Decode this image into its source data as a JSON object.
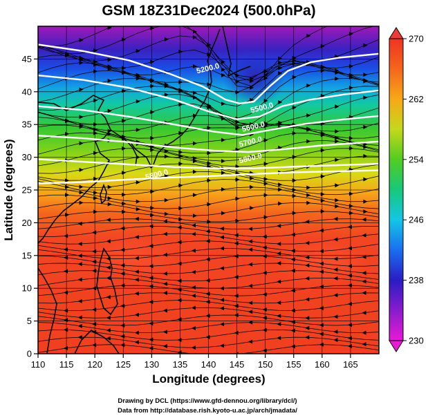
{
  "chart_data": {
    "type": "heatmap",
    "title": "GSM 18Z31Dec2024 (500.0hPa)",
    "xlabel": "Longitude (degrees)",
    "ylabel": "Latitude  (degrees)",
    "xlim": [
      110,
      170
    ],
    "ylim": [
      0,
      50
    ],
    "x_ticks": [
      "110",
      "115",
      "120",
      "125",
      "130",
      "135",
      "140",
      "145",
      "150",
      "155",
      "160",
      "165"
    ],
    "y_ticks": [
      "0",
      "5",
      "10",
      "15",
      "20",
      "25",
      "30",
      "35",
      "40",
      "45"
    ],
    "colorbar": {
      "range": [
        230,
        270
      ],
      "tick_labels": [
        "230",
        "238",
        "246",
        "254",
        "262",
        "270"
      ]
    },
    "contours": [
      {
        "label": "5200.0",
        "points": [
          [
            110,
            47.2
          ],
          [
            118,
            46.2
          ],
          [
            126,
            44.8
          ],
          [
            133,
            42.8
          ],
          [
            139,
            40.8
          ],
          [
            143,
            38.8
          ],
          [
            145.5,
            38.2
          ],
          [
            148,
            38.5
          ],
          [
            151,
            41
          ],
          [
            154,
            43.2
          ],
          [
            158,
            44.5
          ],
          [
            163,
            45.2
          ],
          [
            170,
            45.8
          ]
        ]
      },
      {
        "label": "5500.0",
        "points": [
          [
            110,
            42.5
          ],
          [
            118,
            41.8
          ],
          [
            126,
            40.6
          ],
          [
            134,
            38.8
          ],
          [
            140,
            37
          ],
          [
            145,
            35.8
          ],
          [
            149,
            36.2
          ],
          [
            153,
            37.8
          ],
          [
            158,
            38.8
          ],
          [
            164,
            39.6
          ],
          [
            170,
            40.2
          ]
        ]
      },
      {
        "label": "5600.0",
        "points": [
          [
            110,
            37.8
          ],
          [
            118,
            37.2
          ],
          [
            126,
            36.2
          ],
          [
            134,
            35
          ],
          [
            141,
            33.9
          ],
          [
            146,
            33.4
          ],
          [
            151,
            34.2
          ],
          [
            157,
            35.1
          ],
          [
            164,
            35.8
          ],
          [
            170,
            36.3
          ]
        ]
      },
      {
        "label": "5700.0",
        "points": [
          [
            110,
            33.3
          ],
          [
            118,
            32.9
          ],
          [
            126,
            32.3
          ],
          [
            134,
            31.5
          ],
          [
            141,
            31
          ],
          [
            147,
            30.8
          ],
          [
            153,
            31.2
          ],
          [
            160,
            31.8
          ],
          [
            170,
            32.4
          ]
        ]
      },
      {
        "label": "5800.0",
        "points": [
          [
            110,
            29.7
          ],
          [
            118,
            29.3
          ],
          [
            126,
            28.9
          ],
          [
            134,
            28.5
          ],
          [
            141,
            28.3
          ],
          [
            148,
            28.3
          ],
          [
            156,
            28.6
          ],
          [
            170,
            29
          ]
        ]
      },
      {
        "label": "5800.0",
        "points": [
          [
            110,
            26
          ],
          [
            118,
            26.2
          ],
          [
            126,
            26.6
          ],
          [
            133,
            26.9
          ],
          [
            140,
            27.1
          ],
          [
            147,
            27.4
          ],
          [
            155,
            27.7
          ],
          [
            170,
            28
          ]
        ]
      }
    ],
    "contour_labels": [
      {
        "text": "5200.0",
        "x": 140,
        "y": 43.2
      },
      {
        "text": "5500.0",
        "x": 149.5,
        "y": 37.2
      },
      {
        "text": "5600.0",
        "x": 148,
        "y": 34.3
      },
      {
        "text": "5700.0",
        "x": 147.5,
        "y": 32
      },
      {
        "text": "5800.0",
        "x": 147.5,
        "y": 29.5
      },
      {
        "text": "5800.0",
        "x": 131,
        "y": 27
      }
    ]
  },
  "credits": {
    "line1": "Drawing by DCL (https://www.gfd-dennou.org/library/dcl/)",
    "line2": "Data from http://database.rish.kyoto-u.ac.jp/arch/jmadata/"
  }
}
